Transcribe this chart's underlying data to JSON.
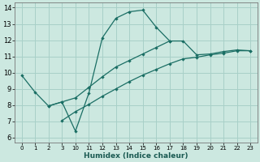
{
  "xlabel": "Humidex (Indice chaleur)",
  "bg_color": "#cce8e0",
  "grid_color": "#a8d0c8",
  "line_color": "#1a6e64",
  "ylim": [
    5.7,
    14.3
  ],
  "yticks": [
    6,
    7,
    8,
    9,
    10,
    11,
    12,
    13,
    14
  ],
  "xtick_labels": [
    "0",
    "1",
    "2",
    "3",
    "10",
    "11",
    "12",
    "13",
    "14",
    "15",
    "16",
    "17",
    "18",
    "19",
    "20",
    "21",
    "22",
    "23"
  ],
  "n_xticks": 18,
  "line1_xi": [
    0,
    1,
    2,
    3,
    4,
    5,
    6,
    7,
    8,
    9,
    10,
    11
  ],
  "line1_y": [
    9.85,
    8.8,
    7.95,
    8.2,
    6.4,
    8.75,
    12.15,
    13.35,
    13.75,
    13.85,
    12.8,
    11.95
  ],
  "line2_xi": [
    2,
    3,
    4,
    5,
    6,
    7,
    8,
    9,
    10,
    11,
    12,
    13,
    14,
    15,
    16,
    17
  ],
  "line2_y": [
    7.95,
    8.2,
    8.45,
    9.1,
    9.75,
    10.35,
    10.75,
    11.15,
    11.55,
    11.95,
    11.95,
    11.1,
    11.15,
    11.3,
    11.4,
    11.35
  ],
  "line3_xi": [
    3,
    4,
    5,
    6,
    7,
    8,
    9,
    10,
    11,
    12,
    13,
    14,
    15,
    16,
    17
  ],
  "line3_y": [
    7.05,
    7.6,
    8.05,
    8.55,
    9.0,
    9.45,
    9.85,
    10.2,
    10.55,
    10.85,
    10.95,
    11.1,
    11.2,
    11.35,
    11.35
  ],
  "figsize": [
    3.2,
    2.0
  ],
  "dpi": 100
}
